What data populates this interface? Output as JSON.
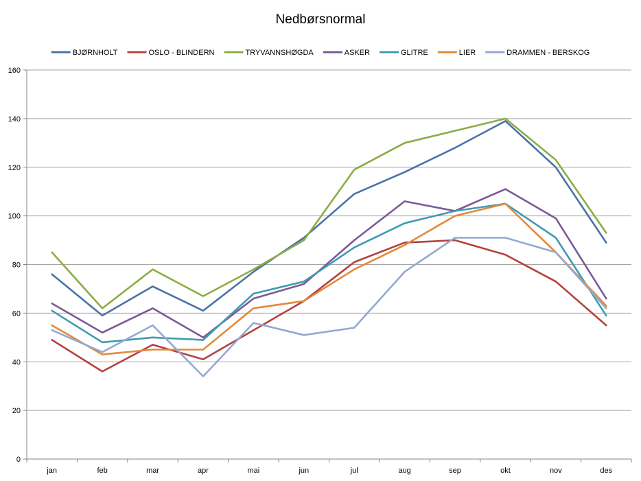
{
  "chart_data": {
    "type": "line",
    "title": "Nedbørsnormal",
    "xlabel": "",
    "ylabel": "",
    "categories": [
      "jan",
      "feb",
      "mar",
      "apr",
      "mai",
      "jun",
      "jul",
      "aug",
      "sep",
      "okt",
      "nov",
      "des"
    ],
    "ylim": [
      0,
      160
    ],
    "yticks": [
      0,
      20,
      40,
      60,
      80,
      100,
      120,
      140,
      160
    ],
    "grid": true,
    "legend_position": "top",
    "series": [
      {
        "name": "BJØRNHOLT",
        "color": "#4a72a8",
        "values": [
          76,
          59,
          71,
          61,
          77,
          91,
          109,
          118,
          128,
          139,
          120,
          89
        ]
      },
      {
        "name": "OSLO - BLINDERN",
        "color": "#b5413e",
        "values": [
          49,
          36,
          47,
          41,
          53,
          65,
          81,
          89,
          90,
          84,
          73,
          55
        ]
      },
      {
        "name": "TRYVANNSHØGDA",
        "color": "#8cac44",
        "values": [
          85,
          62,
          78,
          67,
          78,
          90,
          119,
          130,
          135,
          140,
          123,
          93
        ]
      },
      {
        "name": "ASKER",
        "color": "#7a5a96",
        "values": [
          64,
          52,
          62,
          50,
          66,
          72,
          90,
          106,
          102,
          111,
          99,
          66
        ]
      },
      {
        "name": "GLITRE",
        "color": "#3f9bb1",
        "values": [
          61,
          48,
          50,
          49,
          68,
          73,
          87,
          97,
          102,
          105,
          91,
          59
        ]
      },
      {
        "name": "LIER",
        "color": "#e18a3b",
        "values": [
          55,
          43,
          45,
          45,
          62,
          65,
          78,
          88,
          100,
          105,
          85,
          63
        ]
      },
      {
        "name": "DRAMMEN - BERSKOG",
        "color": "#93a9cf",
        "values": [
          53,
          44,
          55,
          34,
          56,
          51,
          54,
          77,
          91,
          91,
          85,
          62
        ]
      }
    ]
  }
}
